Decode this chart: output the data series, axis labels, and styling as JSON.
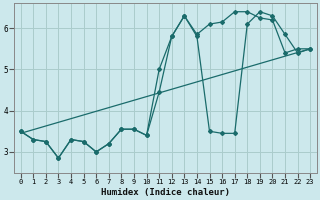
{
  "xlabel": "Humidex (Indice chaleur)",
  "bg_color": "#cce8ec",
  "grid_color": "#aacccc",
  "line_color": "#1a6b6b",
  "xlim": [
    -0.5,
    23.5
  ],
  "ylim": [
    2.5,
    6.6
  ],
  "xticks": [
    0,
    1,
    2,
    3,
    4,
    5,
    6,
    7,
    8,
    9,
    10,
    11,
    12,
    13,
    14,
    15,
    16,
    17,
    18,
    19,
    20,
    21,
    22,
    23
  ],
  "yticks": [
    3,
    4,
    5,
    6
  ],
  "series1_x": [
    0,
    1,
    2,
    3,
    4,
    5,
    6,
    7,
    8,
    9,
    10,
    11,
    12,
    13,
    14,
    15,
    16,
    17,
    18,
    19,
    20,
    21,
    22,
    23
  ],
  "series1_y": [
    3.5,
    3.3,
    3.25,
    2.85,
    3.3,
    3.25,
    3.0,
    3.2,
    3.55,
    3.55,
    3.4,
    4.45,
    5.8,
    6.3,
    5.8,
    3.5,
    3.45,
    3.45,
    6.1,
    6.4,
    6.3,
    5.85,
    5.4,
    5.5
  ],
  "series2_x": [
    0,
    1,
    2,
    3,
    4,
    5,
    6,
    7,
    8,
    9,
    10,
    11,
    12,
    13,
    14,
    15,
    16,
    17,
    18,
    19,
    20,
    21,
    22,
    23
  ],
  "series2_y": [
    3.5,
    3.3,
    3.25,
    2.85,
    3.3,
    3.25,
    3.0,
    3.2,
    3.55,
    3.55,
    3.4,
    5.0,
    5.8,
    6.3,
    5.85,
    6.1,
    6.15,
    6.4,
    6.4,
    6.25,
    6.2,
    5.4,
    5.5,
    5.5
  ],
  "trend_x": [
    0,
    23
  ],
  "trend_y": [
    3.45,
    5.5
  ]
}
